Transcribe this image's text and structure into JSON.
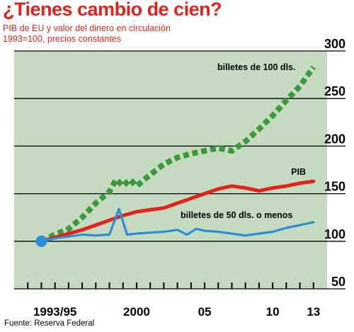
{
  "header": {
    "title": "¿Tienes cambio de cien?",
    "subtitle_line1": "PIB de EU y valor del dinero en circulación",
    "subtitle_line2": "1993=100, precios constantes"
  },
  "footer": {
    "source": "Fuente: Reserva Federal"
  },
  "colors": {
    "background": "#c6d9c1",
    "bill100": "#3a9a3a",
    "gdp": "#e2231a",
    "bill50": "#2a8fd6",
    "marker": "#2a8fd6"
  },
  "chart_data": {
    "type": "line",
    "title": "¿Tienes cambio de cien?",
    "subtitle": "PIB de EU y valor del dinero en circulación, 1993=100, precios constantes",
    "xlim": [
      1991,
      2014
    ],
    "ylim": [
      50,
      300
    ],
    "y_ticks": [
      50,
      100,
      150,
      200,
      250,
      300
    ],
    "y_tick_labels": [
      "50",
      "100",
      "150",
      "200",
      "250",
      "300"
    ],
    "x_ticks": [
      1994,
      2000,
      2005,
      2010,
      2013
    ],
    "x_tick_labels": [
      "1993/95",
      "2000",
      "05",
      "10",
      "13"
    ],
    "grid": true,
    "start_marker": {
      "x": 1993,
      "y": 100
    },
    "series": [
      {
        "name": "billetes de 100 dls.",
        "style": "dashed",
        "points": [
          [
            1993,
            100
          ],
          [
            1994,
            107
          ],
          [
            1995,
            113
          ],
          [
            1996,
            125
          ],
          [
            1997,
            140
          ],
          [
            1998,
            152
          ],
          [
            1998.5,
            165
          ],
          [
            1999,
            158
          ],
          [
            1999.5,
            165
          ],
          [
            2000,
            158
          ],
          [
            2001,
            170
          ],
          [
            2002,
            181
          ],
          [
            2003,
            188
          ],
          [
            2004,
            192
          ],
          [
            2005,
            195
          ],
          [
            2006,
            198
          ],
          [
            2007,
            195
          ],
          [
            2008,
            205
          ],
          [
            2009,
            218
          ],
          [
            2010,
            232
          ],
          [
            2011,
            248
          ],
          [
            2012,
            263
          ],
          [
            2013,
            283
          ]
        ]
      },
      {
        "name": "PIB",
        "style": "solid",
        "points": [
          [
            1993,
            100
          ],
          [
            1994,
            104
          ],
          [
            1995,
            108
          ],
          [
            1996,
            112
          ],
          [
            1997,
            117
          ],
          [
            1998,
            122
          ],
          [
            1999,
            127
          ],
          [
            2000,
            131
          ],
          [
            2001,
            133
          ],
          [
            2002,
            135
          ],
          [
            2003,
            140
          ],
          [
            2004,
            145
          ],
          [
            2005,
            150
          ],
          [
            2006,
            155
          ],
          [
            2007,
            158
          ],
          [
            2008,
            156
          ],
          [
            2009,
            153
          ],
          [
            2010,
            156
          ],
          [
            2011,
            158
          ],
          [
            2012,
            161
          ],
          [
            2013,
            163
          ]
        ]
      },
      {
        "name": "billetes de 50 dls. o menos",
        "style": "solid",
        "points": [
          [
            1993,
            100
          ],
          [
            1994,
            103
          ],
          [
            1995,
            105
          ],
          [
            1996,
            107
          ],
          [
            1997,
            106
          ],
          [
            1998,
            107
          ],
          [
            1998.7,
            134
          ],
          [
            1999.3,
            107
          ],
          [
            2000,
            108
          ],
          [
            2001,
            109
          ],
          [
            2002,
            110
          ],
          [
            2003,
            112
          ],
          [
            2003.7,
            107
          ],
          [
            2004.4,
            113
          ],
          [
            2005,
            111
          ],
          [
            2006,
            110
          ],
          [
            2007,
            108
          ],
          [
            2008,
            106
          ],
          [
            2009,
            108
          ],
          [
            2010,
            110
          ],
          [
            2011,
            114
          ],
          [
            2012,
            117
          ],
          [
            2013,
            120
          ]
        ]
      }
    ]
  }
}
